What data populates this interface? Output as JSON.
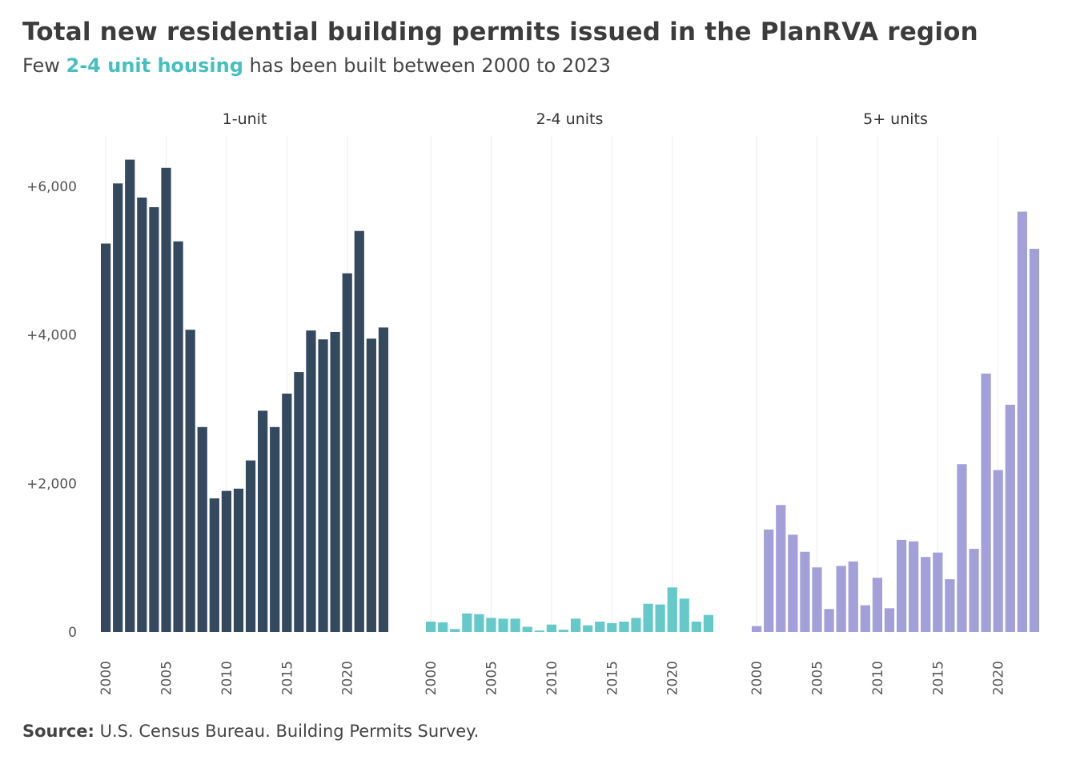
{
  "header": {
    "title": "Total new residential building permits issued in the PlanRVA region",
    "subtitle_pre": "Few ",
    "subtitle_highlight": "2-4 unit housing",
    "subtitle_post": " has been built between 2000  to 2023"
  },
  "footer": {
    "source_label": "Source:",
    "source_text": " U.S. Census Bureau. Building Permits Survey."
  },
  "chart_data": {
    "type": "bar",
    "x": [
      2000,
      2001,
      2002,
      2003,
      2004,
      2005,
      2006,
      2007,
      2008,
      2009,
      2010,
      2011,
      2012,
      2013,
      2014,
      2015,
      2016,
      2017,
      2018,
      2019,
      2020,
      2021,
      2022,
      2023
    ],
    "ylim": [
      0,
      6500
    ],
    "y_ticks": [
      0,
      2000,
      4000,
      6000
    ],
    "y_tick_labels": [
      "0",
      "+2,000",
      "+4,000",
      "+6,000"
    ],
    "x_ticks": [
      2000,
      2005,
      2010,
      2015,
      2020
    ],
    "x_tick_labels": [
      "2000",
      "2005",
      "2010",
      "2015",
      "2020"
    ],
    "grid": "vertical",
    "series": [
      {
        "name": "1-unit",
        "color": "#34495e",
        "values": [
          5230,
          6040,
          6360,
          5850,
          5720,
          6250,
          5260,
          4070,
          2760,
          1800,
          1900,
          1930,
          2310,
          2980,
          2760,
          3210,
          3500,
          4060,
          3940,
          4040,
          4830,
          5400,
          3950,
          4100
        ]
      },
      {
        "name": "2-4 units",
        "color": "#65c9c9",
        "values": [
          140,
          130,
          40,
          250,
          240,
          190,
          180,
          180,
          70,
          20,
          100,
          30,
          180,
          90,
          140,
          120,
          140,
          190,
          380,
          370,
          600,
          450,
          140,
          230
        ]
      },
      {
        "name": "5+ units",
        "color": "#a39fd8",
        "values": [
          80,
          1380,
          1710,
          1310,
          1080,
          870,
          310,
          890,
          950,
          360,
          730,
          320,
          1240,
          1220,
          1010,
          1070,
          710,
          2260,
          1120,
          3480,
          2180,
          3060,
          5660,
          5160
        ]
      }
    ]
  }
}
